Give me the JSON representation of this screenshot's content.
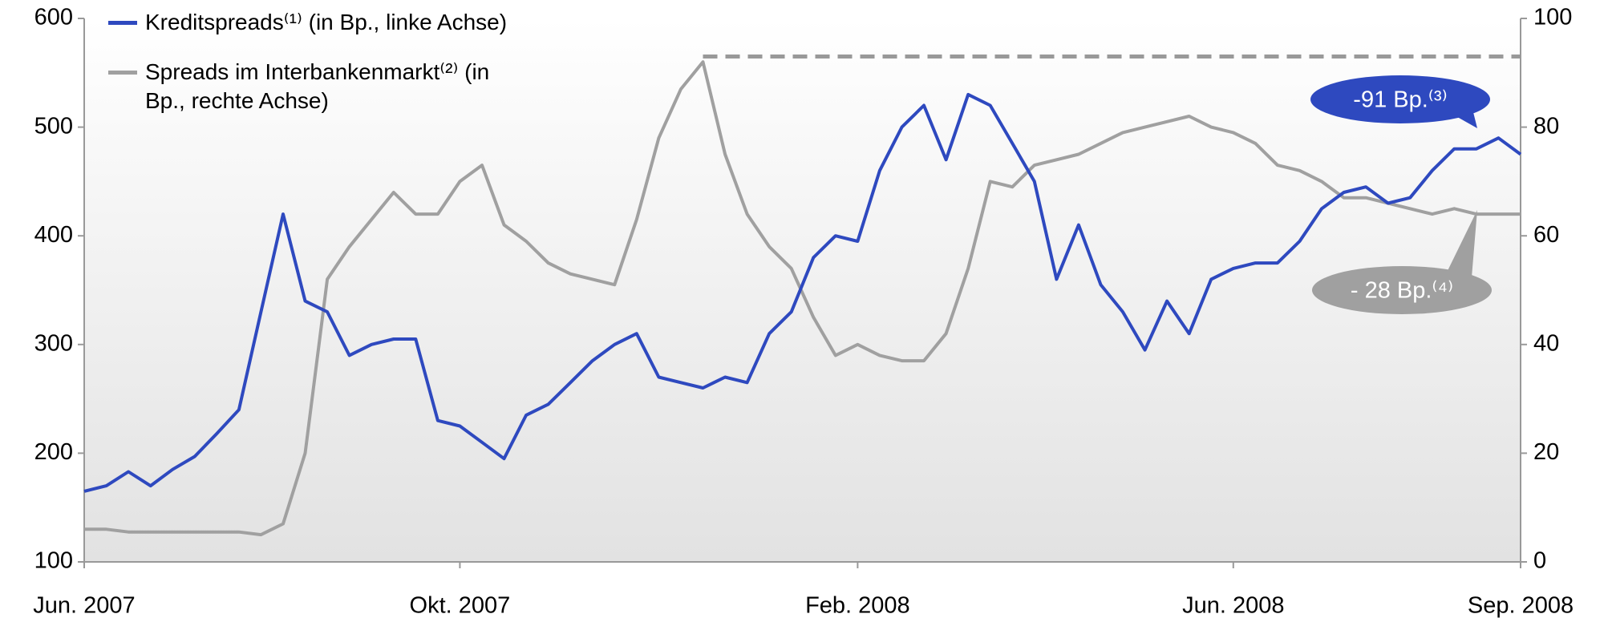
{
  "chart_data": {
    "type": "line",
    "categories": [
      "Jun. 2007",
      null,
      null,
      null,
      null,
      null,
      null,
      null,
      null,
      null,
      null,
      null,
      null,
      null,
      null,
      null,
      null,
      "Okt. 2007",
      null,
      null,
      null,
      null,
      null,
      null,
      null,
      null,
      null,
      null,
      null,
      null,
      null,
      null,
      null,
      null,
      null,
      "Feb. 2008",
      null,
      null,
      null,
      null,
      null,
      null,
      null,
      null,
      null,
      null,
      null,
      null,
      null,
      null,
      null,
      null,
      "Jun. 2008",
      null,
      null,
      null,
      null,
      null,
      null,
      null,
      null,
      null,
      null,
      null,
      null,
      "Sep. 2008"
    ],
    "series": [
      {
        "name": "Kreditspreads⁽¹⁾ (in Bp., linke Achse)",
        "color": "#2e49bf",
        "axis": "y",
        "values": [
          165,
          170,
          183,
          170,
          185,
          197,
          218,
          240,
          330,
          420,
          340,
          330,
          290,
          300,
          305,
          305,
          230,
          225,
          210,
          195,
          235,
          245,
          265,
          285,
          300,
          310,
          270,
          265,
          260,
          270,
          265,
          310,
          330,
          380,
          400,
          395,
          460,
          500,
          520,
          470,
          530,
          520,
          485,
          450,
          360,
          410,
          355,
          330,
          295,
          340,
          310,
          360,
          370,
          375,
          375,
          395,
          425,
          440,
          445,
          430,
          435,
          460,
          480,
          480,
          490,
          475
        ]
      },
      {
        "name": "Spreads im Interbankenmarkt⁽²⁾ (in Bp., rechte Achse)",
        "color": "#a0a0a0",
        "axis": "y2",
        "values": [
          6,
          6,
          5.5,
          5.5,
          5.5,
          5.5,
          5.5,
          5.5,
          5,
          7,
          20,
          52,
          58,
          63,
          68,
          64,
          64,
          70,
          73,
          62,
          59,
          55,
          53,
          52,
          51,
          63,
          78,
          87,
          92,
          75,
          64,
          58,
          54,
          45,
          38,
          40,
          38,
          37,
          37,
          42,
          54,
          70,
          69,
          73,
          74,
          75,
          77,
          79,
          80,
          81,
          82,
          80,
          79,
          77,
          73,
          72,
          70,
          67,
          67,
          66,
          65,
          64,
          65,
          64,
          64,
          64
        ]
      }
    ],
    "ylim": [
      100,
      600
    ],
    "yticks": [
      100,
      200,
      300,
      400,
      500,
      600
    ],
    "y2lim": [
      0,
      100
    ],
    "y2ticks": [
      0,
      20,
      40,
      60,
      80,
      100
    ],
    "reference_line": {
      "value": 93,
      "axis": "y2",
      "color": "#999999"
    },
    "annotations": [
      {
        "text": "-91 Bp.⁽³⁾",
        "series": 0,
        "color": "#2e49bf"
      },
      {
        "text": "- 28 Bp.⁽⁴⁾",
        "series": 1,
        "color": "#a0a0a0"
      }
    ]
  }
}
